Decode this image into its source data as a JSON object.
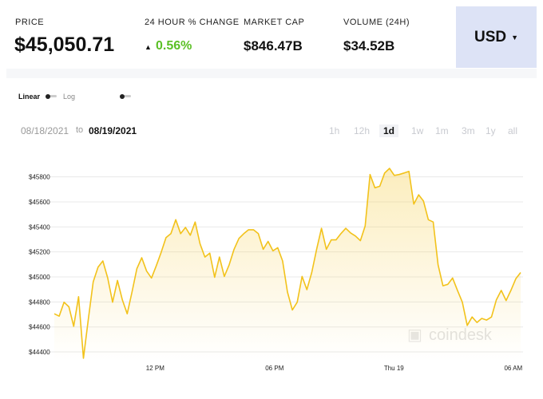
{
  "header": {
    "price_label": "PRICE",
    "price": "$45,050.71",
    "change_label": "24 HOUR % CHANGE",
    "change": "0.56%",
    "market_cap_label": "MARKET CAP",
    "market_cap": "$846.47B",
    "volume_label": "VOLUME (24H)",
    "volume": "$34.52B",
    "currency": "USD"
  },
  "scale_toggle": {
    "linear": "Linear",
    "log": "Log"
  },
  "date_range": {
    "from": "08/18/2021",
    "separator": "to",
    "to": "08/19/2021"
  },
  "timeframes": {
    "options": [
      "1h",
      "12h",
      "1d",
      "1w",
      "1m",
      "3m",
      "1y",
      "all"
    ],
    "active": 2
  },
  "watermark": "coindesk",
  "chart_data": {
    "type": "line",
    "color": "#f2c21b",
    "grid": true,
    "ylim": [
      44330,
      45900
    ],
    "yticks": [
      {
        "value": 44400,
        "label": "$44400"
      },
      {
        "value": 44600,
        "label": "$44600"
      },
      {
        "value": 44800,
        "label": "$44800"
      },
      {
        "value": 45000,
        "label": "$45000"
      },
      {
        "value": 45200,
        "label": "$45200"
      },
      {
        "value": 45400,
        "label": "$45400"
      },
      {
        "value": 45600,
        "label": "$45600"
      },
      {
        "value": 45800,
        "label": "$45800"
      }
    ],
    "xlim": [
      6.69,
      30.49
    ],
    "xticks": [
      {
        "value": 12,
        "label": "12 PM"
      },
      {
        "value": 18,
        "label": "06 PM"
      },
      {
        "value": 24,
        "label": "Thu 19"
      },
      {
        "value": 30,
        "label": "06 AM"
      }
    ],
    "values": [
      44705,
      44686,
      44798,
      44761,
      44605,
      44842,
      44350,
      44661,
      44960,
      45078,
      45128,
      44991,
      44798,
      44972,
      44817,
      44705,
      44879,
      45066,
      45153,
      45047,
      44991,
      45091,
      45196,
      45315,
      45346,
      45458,
      45346,
      45396,
      45333,
      45439,
      45265,
      45159,
      45190,
      44997,
      45159,
      45004,
      45097,
      45221,
      45308,
      45346,
      45377,
      45377,
      45346,
      45221,
      45284,
      45209,
      45234,
      45128,
      44879,
      44736,
      44798,
      45004,
      44898,
      45035,
      45221,
      45389,
      45221,
      45296,
      45296,
      45346,
      45389,
      45352,
      45327,
      45290,
      45408,
      45819,
      45713,
      45725,
      45831,
      45868,
      45812,
      45819,
      45831,
      45844,
      45582,
      45657,
      45607,
      45458,
      45439,
      45097,
      44929,
      44941,
      44991,
      44892,
      44798,
      44612,
      44680,
      44636,
      44668,
      44655,
      44680,
      44817,
      44892,
      44811,
      44892,
      44985,
      45035
    ]
  }
}
